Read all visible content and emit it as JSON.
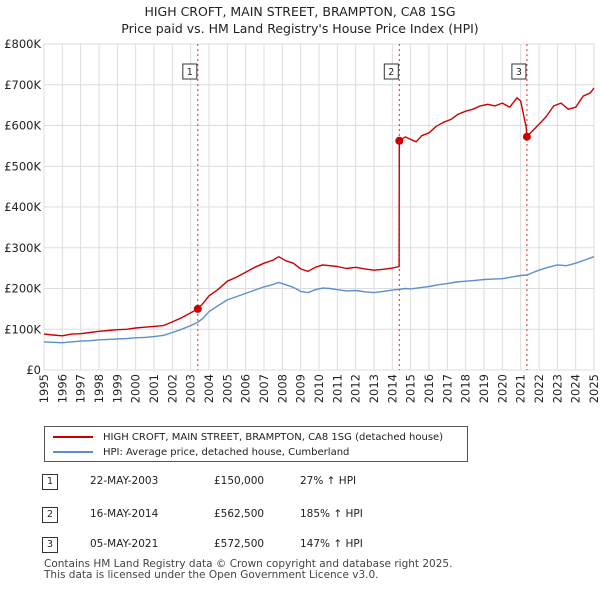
{
  "header": {
    "title": "HIGH CROFT, MAIN STREET, BRAMPTON, CA8 1SG",
    "subtitle": "Price paid vs. HM Land Registry's House Price Index (HPI)"
  },
  "colors": {
    "property": "#cc0000",
    "hpi": "#5b8fd0",
    "grid": "#dddddd",
    "marker_line": "#cc3333"
  },
  "chart_data": {
    "type": "line",
    "title": "HIGH CROFT, MAIN STREET, BRAMPTON, CA8 1SG",
    "subtitle": "Price paid vs. HM Land Registry's House Price Index (HPI)",
    "xlabel": "",
    "ylabel": "",
    "xlim": [
      1995,
      2025
    ],
    "ylim": [
      0,
      800000
    ],
    "grid": true,
    "yticks": [
      {
        "value": 0,
        "label": "£0"
      },
      {
        "value": 100000,
        "label": "£100K"
      },
      {
        "value": 200000,
        "label": "£200K"
      },
      {
        "value": 300000,
        "label": "£300K"
      },
      {
        "value": 400000,
        "label": "£400K"
      },
      {
        "value": 500000,
        "label": "£500K"
      },
      {
        "value": 600000,
        "label": "£600K"
      },
      {
        "value": 700000,
        "label": "£700K"
      },
      {
        "value": 800000,
        "label": "£800K"
      }
    ],
    "xticks": [
      "1995",
      "1996",
      "1997",
      "1998",
      "1999",
      "2000",
      "2001",
      "2002",
      "2003",
      "2004",
      "2005",
      "2006",
      "2007",
      "2008",
      "2009",
      "2010",
      "2011",
      "2012",
      "2013",
      "2014",
      "2015",
      "2016",
      "2017",
      "2018",
      "2019",
      "2020",
      "2021",
      "2022",
      "2023",
      "2024",
      "2025"
    ],
    "series": [
      {
        "name": "HIGH CROFT, MAIN STREET, BRAMPTON, CA8 1SG (detached house)",
        "color": "#cc0000",
        "points": [
          [
            1995.0,
            88000
          ],
          [
            1995.5,
            86000
          ],
          [
            1996.0,
            84000
          ],
          [
            1996.5,
            88000
          ],
          [
            1997.0,
            89000
          ],
          [
            1997.5,
            92000
          ],
          [
            1998.0,
            95000
          ],
          [
            1998.5,
            97000
          ],
          [
            1999.0,
            99000
          ],
          [
            1999.5,
            100000
          ],
          [
            2000.0,
            103000
          ],
          [
            2000.5,
            105000
          ],
          [
            2001.0,
            107000
          ],
          [
            2001.5,
            109000
          ],
          [
            2002.0,
            118000
          ],
          [
            2002.5,
            128000
          ],
          [
            2003.0,
            140000
          ],
          [
            2003.39,
            150000
          ],
          [
            2003.7,
            165000
          ],
          [
            2004.0,
            182000
          ],
          [
            2004.5,
            198000
          ],
          [
            2005.0,
            218000
          ],
          [
            2005.5,
            228000
          ],
          [
            2006.0,
            240000
          ],
          [
            2006.5,
            252000
          ],
          [
            2007.0,
            262000
          ],
          [
            2007.5,
            270000
          ],
          [
            2007.8,
            278000
          ],
          [
            2008.2,
            268000
          ],
          [
            2008.6,
            262000
          ],
          [
            2009.0,
            248000
          ],
          [
            2009.4,
            242000
          ],
          [
            2009.8,
            252000
          ],
          [
            2010.2,
            258000
          ],
          [
            2010.6,
            256000
          ],
          [
            2011.0,
            254000
          ],
          [
            2011.5,
            249000
          ],
          [
            2012.0,
            252000
          ],
          [
            2012.5,
            248000
          ],
          [
            2013.0,
            245000
          ],
          [
            2013.5,
            247000
          ],
          [
            2014.0,
            250000
          ],
          [
            2014.37,
            254000
          ],
          [
            2014.38,
            562500
          ],
          [
            2014.7,
            572000
          ],
          [
            2015.0,
            566000
          ],
          [
            2015.3,
            560000
          ],
          [
            2015.6,
            575000
          ],
          [
            2016.0,
            582000
          ],
          [
            2016.4,
            598000
          ],
          [
            2016.8,
            608000
          ],
          [
            2017.2,
            615000
          ],
          [
            2017.6,
            628000
          ],
          [
            2018.0,
            635000
          ],
          [
            2018.4,
            640000
          ],
          [
            2018.8,
            648000
          ],
          [
            2019.2,
            652000
          ],
          [
            2019.6,
            648000
          ],
          [
            2020.0,
            655000
          ],
          [
            2020.4,
            645000
          ],
          [
            2020.8,
            668000
          ],
          [
            2021.0,
            660000
          ],
          [
            2021.3,
            595000
          ],
          [
            2021.34,
            572500
          ],
          [
            2021.6,
            585000
          ],
          [
            2022.0,
            603000
          ],
          [
            2022.4,
            622000
          ],
          [
            2022.8,
            648000
          ],
          [
            2023.2,
            655000
          ],
          [
            2023.6,
            640000
          ],
          [
            2024.0,
            645000
          ],
          [
            2024.4,
            672000
          ],
          [
            2024.8,
            680000
          ],
          [
            2025.0,
            692000
          ]
        ]
      },
      {
        "name": "HPI: Average price, detached house, Cumberland",
        "color": "#5b8fd0",
        "points": [
          [
            1995.0,
            69000
          ],
          [
            1995.5,
            68000
          ],
          [
            1996.0,
            67000
          ],
          [
            1996.5,
            69000
          ],
          [
            1997.0,
            71000
          ],
          [
            1997.5,
            72000
          ],
          [
            1998.0,
            74000
          ],
          [
            1998.5,
            75000
          ],
          [
            1999.0,
            76000
          ],
          [
            1999.5,
            77000
          ],
          [
            2000.0,
            79000
          ],
          [
            2000.5,
            80000
          ],
          [
            2001.0,
            82000
          ],
          [
            2001.5,
            85000
          ],
          [
            2002.0,
            92000
          ],
          [
            2002.5,
            100000
          ],
          [
            2003.0,
            109000
          ],
          [
            2003.39,
            117000
          ],
          [
            2003.7,
            128000
          ],
          [
            2004.0,
            143000
          ],
          [
            2004.5,
            158000
          ],
          [
            2005.0,
            172000
          ],
          [
            2005.5,
            180000
          ],
          [
            2006.0,
            188000
          ],
          [
            2006.5,
            196000
          ],
          [
            2007.0,
            204000
          ],
          [
            2007.5,
            210000
          ],
          [
            2007.8,
            215000
          ],
          [
            2008.2,
            209000
          ],
          [
            2008.6,
            203000
          ],
          [
            2009.0,
            193000
          ],
          [
            2009.4,
            190000
          ],
          [
            2009.8,
            197000
          ],
          [
            2010.2,
            201000
          ],
          [
            2010.6,
            200000
          ],
          [
            2011.0,
            197000
          ],
          [
            2011.5,
            194000
          ],
          [
            2012.0,
            195000
          ],
          [
            2012.5,
            192000
          ],
          [
            2013.0,
            190000
          ],
          [
            2013.5,
            193000
          ],
          [
            2014.0,
            196000
          ],
          [
            2014.38,
            198000
          ],
          [
            2014.7,
            200000
          ],
          [
            2015.0,
            199000
          ],
          [
            2015.5,
            202000
          ],
          [
            2016.0,
            205000
          ],
          [
            2016.5,
            209000
          ],
          [
            2017.0,
            212000
          ],
          [
            2017.5,
            216000
          ],
          [
            2018.0,
            218000
          ],
          [
            2018.5,
            220000
          ],
          [
            2019.0,
            222000
          ],
          [
            2019.5,
            223000
          ],
          [
            2020.0,
            224000
          ],
          [
            2020.5,
            228000
          ],
          [
            2021.0,
            232000
          ],
          [
            2021.34,
            233000
          ],
          [
            2021.6,
            238000
          ],
          [
            2022.0,
            245000
          ],
          [
            2022.5,
            252000
          ],
          [
            2023.0,
            258000
          ],
          [
            2023.5,
            256000
          ],
          [
            2024.0,
            262000
          ],
          [
            2024.5,
            270000
          ],
          [
            2025.0,
            278000
          ]
        ]
      }
    ],
    "sales": [
      {
        "label": "1",
        "x": 2003.39,
        "y": 150000
      },
      {
        "label": "2",
        "x": 2014.38,
        "y": 562500
      },
      {
        "label": "3",
        "x": 2021.34,
        "y": 572500
      }
    ],
    "legend": [
      {
        "label": "HIGH CROFT, MAIN STREET, BRAMPTON, CA8 1SG (detached house)",
        "color": "#cc0000"
      },
      {
        "label": "HPI: Average price, detached house, Cumberland",
        "color": "#5b8fd0"
      }
    ]
  },
  "sales_table": [
    {
      "num": "1",
      "date": "22-MAY-2003",
      "price": "£150,000",
      "hpi": "27% ↑ HPI"
    },
    {
      "num": "2",
      "date": "16-MAY-2014",
      "price": "£562,500",
      "hpi": "185% ↑ HPI"
    },
    {
      "num": "3",
      "date": "05-MAY-2021",
      "price": "£572,500",
      "hpi": "147% ↑ HPI"
    }
  ],
  "footer": {
    "line1": "Contains HM Land Registry data © Crown copyright and database right 2025.",
    "line2": "This data is licensed under the Open Government Licence v3.0."
  }
}
